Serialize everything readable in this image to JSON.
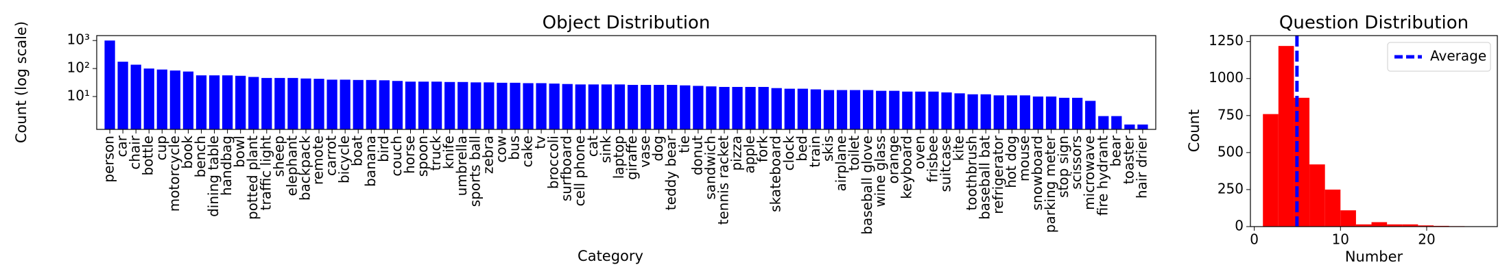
{
  "chart_data": [
    {
      "type": "bar",
      "title": "Object Distribution",
      "x_label": "Category",
      "y_label": "Count (log scale)",
      "log_y": true,
      "color": "#0000ff",
      "categories": [
        "person",
        "car",
        "chair",
        "bottle",
        "cup",
        "motorcycle",
        "book",
        "bench",
        "dining table",
        "handbag",
        "bowl",
        "potted plant",
        "traffic light",
        "sheep",
        "elephant",
        "backpack",
        "remote",
        "carrot",
        "bicycle",
        "boat",
        "banana",
        "bird",
        "couch",
        "horse",
        "spoon",
        "truck",
        "knife",
        "umbrella",
        "sports ball",
        "zebra",
        "cow",
        "bus",
        "cake",
        "tv",
        "broccoli",
        "surfboard",
        "cell phone",
        "cat",
        "sink",
        "laptop",
        "giraffe",
        "vase",
        "dog",
        "teddy bear",
        "tie",
        "donut",
        "sandwich",
        "tennis racket",
        "pizza",
        "apple",
        "fork",
        "skateboard",
        "clock",
        "bed",
        "train",
        "skis",
        "airplane",
        "toilet",
        "baseball glove",
        "wine glass",
        "orange",
        "keyboard",
        "oven",
        "frisbee",
        "suitcase",
        "kite",
        "toothbrush",
        "baseball bat",
        "refrigerator",
        "hot dog",
        "mouse",
        "snowboard",
        "parking meter",
        "stop sign",
        "scissors",
        "microwave",
        "fire hydrant",
        "bear",
        "toaster",
        "hair drier"
      ],
      "values": [
        1000,
        175,
        137,
        100,
        92,
        85,
        78,
        57,
        57,
        57,
        55,
        50,
        46,
        46,
        46,
        44,
        43,
        40,
        40,
        39,
        39,
        38,
        36,
        34,
        34,
        34,
        33,
        33,
        32,
        32,
        31,
        31,
        30,
        30,
        29,
        28,
        27,
        27,
        27,
        27,
        26,
        26,
        26,
        26,
        25,
        24,
        23,
        22,
        22,
        22,
        22,
        20,
        19,
        19,
        18,
        17,
        17,
        17,
        17,
        16,
        16,
        15,
        15,
        15,
        14,
        13,
        12,
        12,
        11,
        11,
        11,
        10,
        10,
        9,
        9,
        7,
        2,
        2,
        1,
        1
      ],
      "ylim": [
        0.67,
        1500
      ],
      "yticks": [
        {
          "value": 10,
          "label": "10¹"
        },
        {
          "value": 100,
          "label": "10²"
        },
        {
          "value": 1000,
          "label": "10³"
        }
      ]
    },
    {
      "type": "histogram",
      "title": "Question Distribution",
      "x_label": "Number",
      "y_label": "Count",
      "color": "#ff0000",
      "bins": [
        1,
        2.8,
        4.6,
        6.4,
        8.2,
        10,
        11.8,
        13.6,
        15.4,
        17.2,
        19,
        20.8,
        22.6,
        24.4,
        26.2
      ],
      "counts": [
        760,
        1220,
        870,
        420,
        250,
        110,
        15,
        30,
        15,
        15,
        8,
        5,
        3,
        2
      ],
      "reference_line": {
        "name": "Average",
        "value": 4.95,
        "color": "#0000ff"
      },
      "legend": "upper right",
      "xlim": [
        -0.45,
        28.2
      ],
      "xticks": [
        0,
        10,
        20
      ],
      "ylim": [
        0,
        1290
      ],
      "yticks": [
        0,
        250,
        500,
        750,
        1000,
        1250
      ]
    }
  ]
}
